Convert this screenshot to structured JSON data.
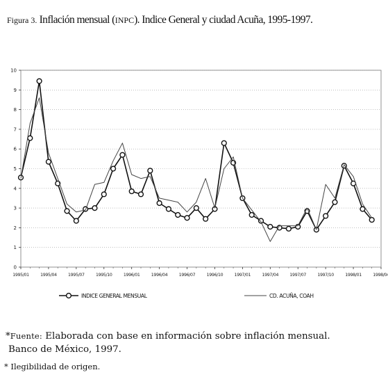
{
  "title": {
    "figure_label": "Figura 3.",
    "text_a": " Inflación mensual (",
    "abbr": "INPC",
    "text_b": "). Indice General y ciudad Acuña, 1995-1997."
  },
  "chart_data": {
    "type": "line",
    "x_tick_labels": [
      "1995/01",
      "1995/04",
      "1995/07",
      "1995/10",
      "1996/01",
      "1996/04",
      "1996/07",
      "1996/10",
      "1997/01",
      "1997/04",
      "1997/07",
      "1997/10",
      "1998/01",
      "1998/04"
    ],
    "y_ticks": [
      0,
      1,
      2,
      3,
      4,
      5,
      6,
      7,
      8,
      9,
      10
    ],
    "ylim": [
      0,
      10
    ],
    "x_range": [
      0,
      39
    ],
    "grid": "horizontal-dotted",
    "legend_position": "bottom",
    "x": [
      0,
      1,
      2,
      3,
      4,
      5,
      6,
      7,
      8,
      9,
      10,
      11,
      12,
      13,
      14,
      15,
      16,
      17,
      18,
      19,
      20,
      21,
      22,
      23,
      24,
      25,
      26,
      27,
      28,
      29,
      30,
      31,
      32,
      33,
      34,
      35,
      36,
      37,
      38,
      39
    ],
    "series": [
      {
        "name": "INDICE GENERAL MENSUAL",
        "style": "line-markers",
        "color": "#111111",
        "values": [
          4.55,
          6.55,
          9.45,
          5.35,
          4.25,
          2.85,
          2.35,
          2.95,
          3.0,
          3.7,
          5.0,
          5.7,
          3.85,
          3.7,
          4.9,
          3.25,
          2.95,
          2.65,
          2.5,
          3.0,
          2.45,
          2.95,
          6.3,
          5.3,
          3.5,
          2.65,
          2.35,
          2.05,
          2.0,
          1.95,
          2.05,
          2.85,
          1.9,
          2.6,
          3.3,
          5.15,
          4.25,
          2.95,
          2.4,
          null
        ]
      },
      {
        "name": "CD. ACUÑA, COAH",
        "style": "line",
        "color": "#444444",
        "values": [
          4.5,
          7.3,
          8.6,
          5.8,
          4.5,
          3.2,
          2.8,
          2.9,
          4.2,
          4.3,
          5.4,
          6.3,
          4.7,
          4.5,
          4.6,
          3.5,
          3.4,
          3.3,
          2.8,
          3.3,
          4.5,
          3.0,
          5.0,
          5.6,
          3.5,
          2.9,
          2.3,
          1.3,
          2.1,
          2.1,
          2.1,
          3.0,
          1.9,
          4.2,
          3.5,
          5.2,
          4.6,
          3.2,
          2.5,
          null
        ]
      }
    ]
  },
  "source": {
    "fuente_label": "Fuente:",
    "line1": " Elaborada con base en información sobre inflación mensual.",
    "line2": "Banco de México, 1997."
  },
  "footnote": "Ilegibilidad de origen."
}
